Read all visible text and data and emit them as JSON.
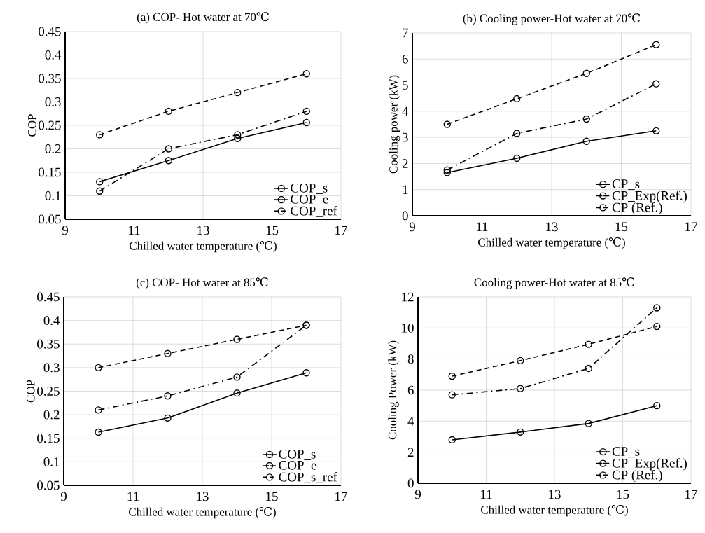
{
  "chart_data": [
    {
      "type": "line",
      "title": "(a) COP- Hot water at 70℃",
      "xlabel": "Chilled water temperature (℃)",
      "ylabel": "COP",
      "x": [
        10,
        12,
        14,
        16
      ],
      "xlim": [
        9,
        17
      ],
      "xticks": [
        9,
        11,
        13,
        15,
        17
      ],
      "ylim": [
        0.05,
        0.45
      ],
      "yticks": [
        0.05,
        0.1,
        0.15,
        0.2,
        0.25,
        0.3,
        0.35,
        0.4,
        0.45
      ],
      "grid": true,
      "legend": "bottom right",
      "marker": "circle",
      "series": [
        {
          "name": "COP_s",
          "color": "#000000",
          "line_style": "solid",
          "values": [
            0.13,
            0.175,
            0.222,
            0.256
          ]
        },
        {
          "name": "COP_e",
          "color": "#000000",
          "line_style": "dashdot",
          "values": [
            0.11,
            0.2,
            0.23,
            0.28
          ]
        },
        {
          "name": "COP_ref",
          "color": "#000000",
          "line_style": "dashed",
          "values": [
            0.23,
            0.28,
            0.32,
            0.36
          ]
        }
      ]
    },
    {
      "type": "line",
      "title": "(b) Cooling power-Hot water at 70℃",
      "xlabel": "Chilled water temperature (℃)",
      "ylabel": "Cooling power (kW)",
      "x": [
        10,
        12,
        14,
        16
      ],
      "xlim": [
        9,
        17
      ],
      "xticks": [
        9,
        11,
        13,
        15,
        17
      ],
      "ylim": [
        0,
        7
      ],
      "yticks": [
        0,
        1,
        2,
        3,
        4,
        5,
        6,
        7
      ],
      "grid": true,
      "legend": "bottom right",
      "marker": "circle",
      "series": [
        {
          "name": "CP_s",
          "color": "#000000",
          "line_style": "solid",
          "values": [
            1.65,
            2.2,
            2.85,
            3.25
          ]
        },
        {
          "name": "CP_Exp(Ref.)",
          "color": "#000000",
          "line_style": "dashdot",
          "values": [
            1.75,
            3.15,
            3.7,
            5.05
          ]
        },
        {
          "name": "CP (Ref.)",
          "color": "#000000",
          "line_style": "dashed",
          "values": [
            3.5,
            4.48,
            5.45,
            6.55
          ]
        }
      ]
    },
    {
      "type": "line",
      "title": "(c) COP- Hot water at 85℃",
      "xlabel": "Chilled water temperature (℃)",
      "ylabel": "COP",
      "x": [
        10,
        12,
        14,
        16
      ],
      "xlim": [
        9,
        17
      ],
      "xticks": [
        9,
        11,
        13,
        15,
        17
      ],
      "ylim": [
        0.05,
        0.45
      ],
      "yticks": [
        0.05,
        0.1,
        0.15,
        0.2,
        0.25,
        0.3,
        0.35,
        0.4,
        0.45
      ],
      "grid": true,
      "legend": "bottom right",
      "marker": "circle",
      "series": [
        {
          "name": "COP_s",
          "color": "#000000",
          "line_style": "solid",
          "values": [
            0.163,
            0.193,
            0.246,
            0.289
          ]
        },
        {
          "name": "COP_e",
          "color": "#000000",
          "line_style": "dashdot",
          "values": [
            0.21,
            0.24,
            0.28,
            0.39
          ]
        },
        {
          "name": "COP_s_ref",
          "color": "#000000",
          "line_style": "dashed",
          "values": [
            0.3,
            0.33,
            0.36,
            0.39
          ]
        }
      ]
    },
    {
      "type": "line",
      "title": "Cooling power-Hot water at 85℃",
      "xlabel": "Chilled water temperature (℃)",
      "ylabel": "Cooling Power (kW)",
      "x": [
        10,
        12,
        14,
        16
      ],
      "xlim": [
        9,
        17
      ],
      "xticks": [
        9,
        11,
        13,
        15,
        17
      ],
      "ylim": [
        0,
        12
      ],
      "yticks": [
        0,
        2,
        4,
        6,
        8,
        10,
        12
      ],
      "grid": true,
      "legend": "bottom right",
      "marker": "circle",
      "series": [
        {
          "name": "CP_s",
          "color": "#000000",
          "line_style": "solid",
          "values": [
            2.8,
            3.3,
            3.85,
            5.0
          ]
        },
        {
          "name": "CP_Exp(Ref.)",
          "color": "#000000",
          "line_style": "dashdot",
          "values": [
            5.7,
            6.1,
            7.4,
            11.3
          ]
        },
        {
          "name": "CP (Ref.)",
          "color": "#000000",
          "line_style": "dashed",
          "values": [
            6.9,
            7.9,
            8.95,
            10.1
          ]
        }
      ]
    }
  ]
}
